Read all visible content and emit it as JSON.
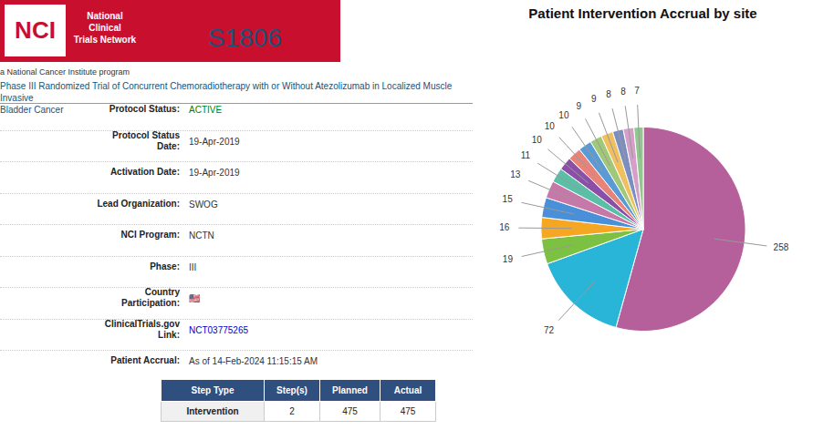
{
  "chart_data": {
    "type": "pie",
    "title": "Patient Intervention Accrual by site",
    "values": [
      258,
      72,
      19,
      16,
      15,
      13,
      11,
      10,
      10,
      10,
      9,
      9,
      8,
      8,
      7
    ],
    "colors": [
      "#b5609a",
      "#29b5d8",
      "#7dc142",
      "#f5a623",
      "#4a90d9",
      "#c678a8",
      "#5bbfa8",
      "#8b4fa8",
      "#e8837a",
      "#5b9bd5",
      "#a0c878",
      "#f0c060",
      "#7a8fc0",
      "#d4a0c8",
      "#90c890"
    ],
    "data_labels": true,
    "annotations": [
      "NCI",
      "National Clinical\nTrials Network",
      "S1806",
      "a National Cancer Institute program",
      "Phase III Randomized Trial of Concurrent Chemoradiotherapy with or Without Atezolizumab in Localized Muscle Invasive\nBladder Cancer",
      "Protocol Status:",
      "ACTIVE",
      "Protocol Status\nDate:",
      "19-Apr-2019",
      "Activation Date:",
      "19-Apr-2019",
      "Lead Organization:",
      "SWOG",
      "NCI Program:",
      "NCTN",
      "Phase:",
      "III",
      "Country\nParticipation:",
      "🇺🇸",
      "ClinicalTrials.gov\nLink:",
      "NCT03775265",
      "Patient Accrual:",
      "As of 14-Feb-2024 11:15:15 AM"
    ],
    "table": {
      "headers": [
        "Step Type",
        "Step(s)",
        "Planned",
        "Actual"
      ],
      "rows": [
        [
          "Intervention",
          2,
          475,
          475
        ]
      ]
    }
  }
}
